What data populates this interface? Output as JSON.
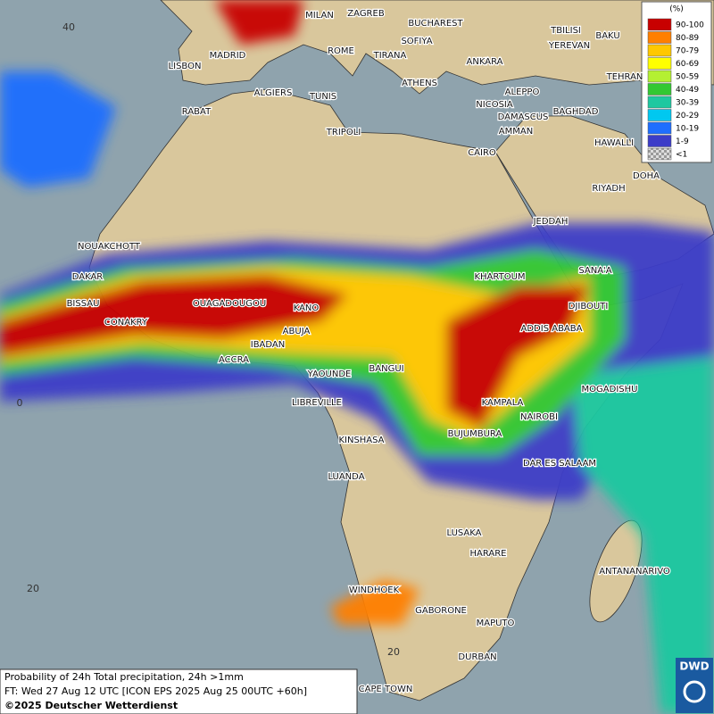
{
  "map": {
    "cities": [
      "MILAN",
      "ZAGREB",
      "BUCHAREST",
      "SOFIYA",
      "TBILISI",
      "BAKU",
      "MADRID",
      "ROME",
      "TIRANA",
      "ANKARA",
      "YEREVAN",
      "LISBON",
      "TEHRAN",
      "ALGIERS",
      "TUNIS",
      "ATHENS",
      "ALEPPO",
      "RABAT",
      "NICOSIA",
      "BAGHDAD",
      "DAMASCUS",
      "TRIPOLI",
      "AMMAN",
      "HAWALLI",
      "CAIRO",
      "DOHA",
      "RIYADH",
      "JEDDAH",
      "NOUAKCHOTT",
      "DAKAR",
      "SANA'A",
      "KHARTOUM",
      "BISSAU",
      "OUAGADOUGOU",
      "KANO",
      "DJIBOUTI",
      "CONAKRY",
      "ABUJA",
      "ADDIS ABABA",
      "IBADAN",
      "ACCRA",
      "BANGUI",
      "YAOUNDE",
      "MOGADISHU",
      "LIBREVILLE",
      "KAMPALA",
      "NAIROBI",
      "BUJUMBURA",
      "KINSHASA",
      "DAR ES SALAAM",
      "LUANDA",
      "LUSAKA",
      "HARARE",
      "ANTANANARIVO",
      "WINDHOEK",
      "GABORONE",
      "MAPUTO",
      "DURBAN",
      "CAPE TOWN"
    ],
    "grid_labels": [
      "40",
      "0",
      "20",
      "20"
    ]
  },
  "legend": {
    "unit": "(%)",
    "entries": [
      {
        "label": "90-100",
        "color": "#c80000"
      },
      {
        "label": "80-89",
        "color": "#ff7f00"
      },
      {
        "label": "70-79",
        "color": "#ffc800"
      },
      {
        "label": "60-69",
        "color": "#ffff00"
      },
      {
        "label": "50-59",
        "color": "#b4f032"
      },
      {
        "label": "40-49",
        "color": "#32c832"
      },
      {
        "label": "30-39",
        "color": "#1ec8a0"
      },
      {
        "label": "20-29",
        "color": "#00c8f0"
      },
      {
        "label": "10-19",
        "color": "#1e6eff"
      },
      {
        "label": "1-9",
        "color": "#3c3cc8"
      },
      {
        "label": "<1",
        "color": "#b4b4b4"
      }
    ]
  },
  "caption": {
    "line1": "Probability of 24h Total precipitation, 24h >1mm",
    "line2": "FT: Wed 27 Aug 12 UTC [ICON EPS 2025 Aug 25 00UTC +60h]",
    "line3": "©2025 Deutscher Wetterdienst"
  },
  "logo": "DWD"
}
